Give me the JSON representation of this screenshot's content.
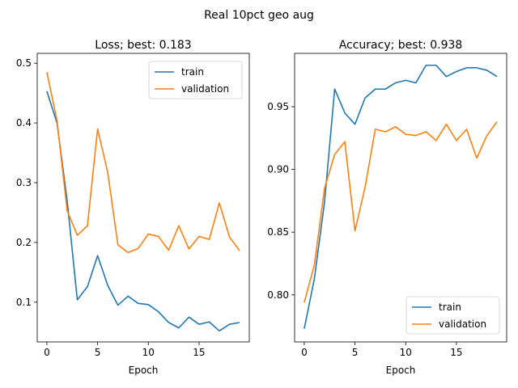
{
  "figure_title": "Real 10pct geo aug",
  "colors": {
    "train": "#1f77b4",
    "validation": "#ff7f0e",
    "axis": "#000000",
    "legend_border": "#cccccc"
  },
  "chart_data": [
    {
      "type": "line",
      "title": "Loss; best: 0.183",
      "xlabel": "Epoch",
      "ylabel": "",
      "xlim": [
        -0.95,
        19.95
      ],
      "ylim": [
        0.0335,
        0.5165
      ],
      "xticks": [
        0,
        5,
        10,
        15
      ],
      "yticks": [
        0.1,
        0.2,
        0.3,
        0.4,
        0.5
      ],
      "ytick_labels": [
        "0.1",
        "0.2",
        "0.3",
        "0.4",
        "0.5"
      ],
      "legend_position": "top-right",
      "x": [
        0,
        1,
        2,
        3,
        4,
        5,
        6,
        7,
        8,
        9,
        10,
        11,
        12,
        13,
        14,
        15,
        16,
        17,
        18,
        19
      ],
      "series": [
        {
          "name": "train",
          "color": "#1f77b4",
          "values": [
            0.453,
            0.4,
            0.27,
            0.104,
            0.126,
            0.178,
            0.128,
            0.095,
            0.11,
            0.098,
            0.096,
            0.084,
            0.066,
            0.057,
            0.075,
            0.063,
            0.067,
            0.052,
            0.063,
            0.066
          ]
        },
        {
          "name": "validation",
          "color": "#ff7f0e",
          "values": [
            0.485,
            0.404,
            0.253,
            0.212,
            0.228,
            0.39,
            0.317,
            0.196,
            0.183,
            0.19,
            0.214,
            0.21,
            0.187,
            0.228,
            0.189,
            0.21,
            0.205,
            0.266,
            0.209,
            0.186
          ]
        }
      ]
    },
    {
      "type": "line",
      "title": "Accuracy; best: 0.938",
      "xlabel": "Epoch",
      "ylabel": "",
      "xlim": [
        -0.95,
        19.95
      ],
      "ylim": [
        0.7625,
        0.9925
      ],
      "xticks": [
        0,
        5,
        10,
        15
      ],
      "yticks": [
        0.8,
        0.85,
        0.9,
        0.95
      ],
      "ytick_labels": [
        "0.80",
        "0.85",
        "0.90",
        "0.95"
      ],
      "legend_position": "bottom-right",
      "x": [
        0,
        1,
        2,
        3,
        4,
        5,
        6,
        7,
        8,
        9,
        10,
        11,
        12,
        13,
        14,
        15,
        16,
        17,
        18,
        19
      ],
      "series": [
        {
          "name": "train",
          "color": "#1f77b4",
          "values": [
            0.773,
            0.813,
            0.874,
            0.964,
            0.945,
            0.936,
            0.957,
            0.964,
            0.964,
            0.969,
            0.971,
            0.969,
            0.983,
            0.983,
            0.974,
            0.978,
            0.981,
            0.981,
            0.979,
            0.974
          ]
        },
        {
          "name": "validation",
          "color": "#ff7f0e",
          "values": [
            0.794,
            0.824,
            0.885,
            0.912,
            0.922,
            0.851,
            0.886,
            0.932,
            0.93,
            0.934,
            0.928,
            0.927,
            0.93,
            0.923,
            0.936,
            0.923,
            0.932,
            0.909,
            0.927,
            0.938
          ]
        }
      ]
    }
  ]
}
